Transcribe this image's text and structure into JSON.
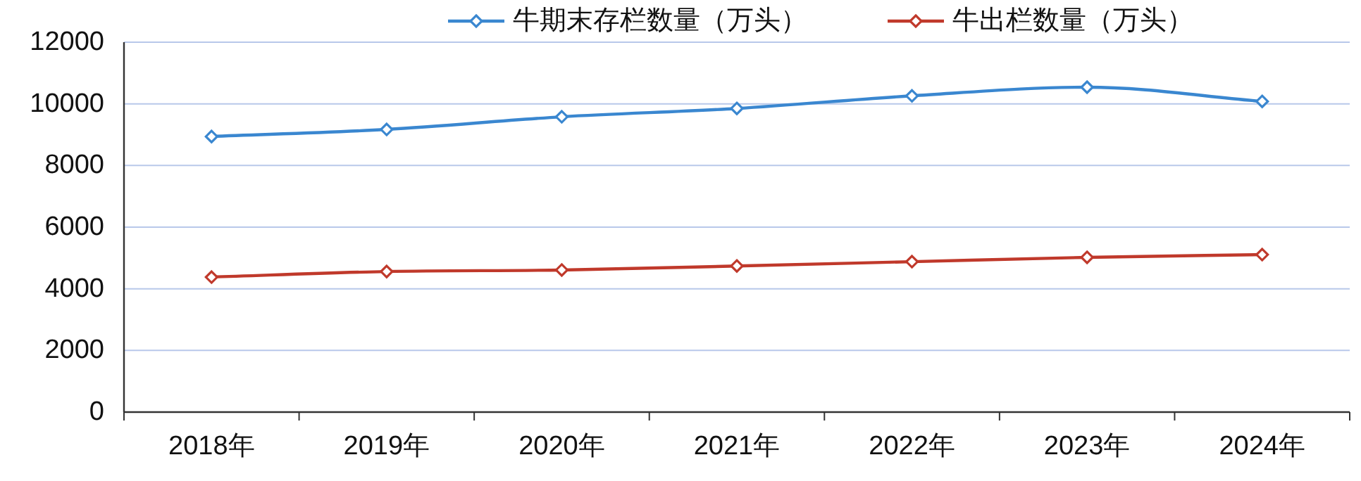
{
  "chart_data": {
    "type": "line",
    "categories": [
      "2018年",
      "2019年",
      "2020年",
      "2021年",
      "2022年",
      "2023年",
      "2024年"
    ],
    "series": [
      {
        "name": "牛期末存栏数量（万头）",
        "color": "#3a87d0",
        "values": [
          8940,
          9170,
          9580,
          9850,
          10260,
          10540,
          10080
        ]
      },
      {
        "name": "牛出栏数量（万头）",
        "color": "#c0392b",
        "values": [
          4380,
          4560,
          4610,
          4740,
          4880,
          5020,
          5110
        ]
      }
    ],
    "ylim": [
      0,
      12000
    ],
    "yticks": [
      0,
      2000,
      4000,
      6000,
      8000,
      10000,
      12000
    ],
    "grid": "y",
    "legend": "top",
    "marker": "diamond",
    "line_style": "solid"
  }
}
